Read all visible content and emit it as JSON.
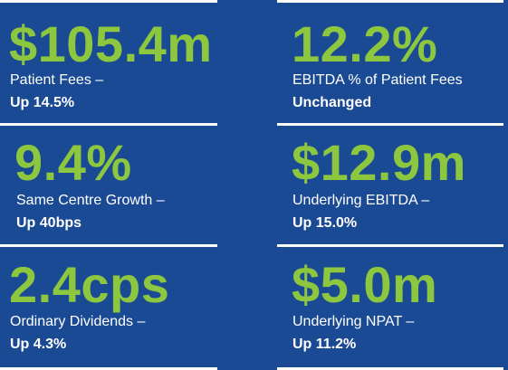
{
  "colors": {
    "background": "#1a4a93",
    "value": "#8dc63f",
    "text": "#ffffff",
    "rule": "#ffffff"
  },
  "metrics": [
    {
      "value": "$105.4m",
      "label": "Patient Fees –",
      "change": "Up 14.5%"
    },
    {
      "value": "12.2%",
      "label": "EBITDA % of Patient Fees",
      "change": "Unchanged"
    },
    {
      "value": "9.4%",
      "label": "Same Centre Growth –",
      "change": "Up 40bps"
    },
    {
      "value": "$12.9m",
      "label": "Underlying EBITDA –",
      "change": "Up 15.0%"
    },
    {
      "value": "2.4cps",
      "label": "Ordinary Dividends –",
      "change": "Up 4.3%"
    },
    {
      "value": "$5.0m",
      "label": "Underlying NPAT –",
      "change": "Up 11.2%"
    }
  ]
}
